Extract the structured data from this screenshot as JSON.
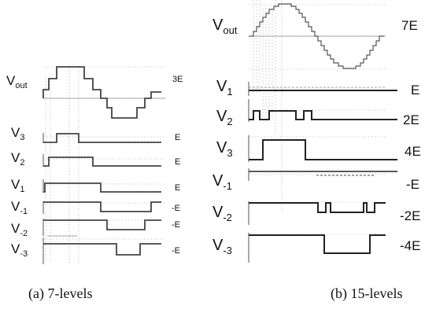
{
  "panel_a": {
    "caption": "(a)  7-levels",
    "rows": [
      {
        "name": "out",
        "label_main": "V",
        "label_sub": "out",
        "value_label": "3E"
      },
      {
        "name": "v3",
        "label_main": "V",
        "label_sub": "3",
        "value_label": "E"
      },
      {
        "name": "v2",
        "label_main": "V",
        "label_sub": "2",
        "value_label": "E"
      },
      {
        "name": "v1",
        "label_main": "V",
        "label_sub": "1",
        "value_label": "E"
      },
      {
        "name": "vm1",
        "label_main": "V",
        "label_sub": "-1",
        "value_label": "-E"
      },
      {
        "name": "vm2",
        "label_main": "V",
        "label_sub": "-2",
        "value_label": "-E"
      },
      {
        "name": "vm3",
        "label_main": "V",
        "label_sub": "-3",
        "value_label": "-E"
      }
    ]
  },
  "panel_b": {
    "caption": "(b) 15-levels",
    "rows": [
      {
        "name": "out",
        "label_main": "V",
        "label_sub": "out",
        "value_label": "7E"
      },
      {
        "name": "v1",
        "label_main": "V",
        "label_sub": "1",
        "value_label": "E"
      },
      {
        "name": "v2",
        "label_main": "V",
        "label_sub": "2",
        "value_label": "2E"
      },
      {
        "name": "v3",
        "label_main": "V",
        "label_sub": "3",
        "value_label": "4E"
      },
      {
        "name": "vm1",
        "label_main": "V",
        "label_sub": "-1",
        "value_label": "-E"
      },
      {
        "name": "vm2",
        "label_main": "V",
        "label_sub": "-2",
        "value_label": "-2E"
      },
      {
        "name": "vm3",
        "label_main": "V",
        "label_sub": "-3",
        "value_label": "-4E"
      }
    ]
  }
}
